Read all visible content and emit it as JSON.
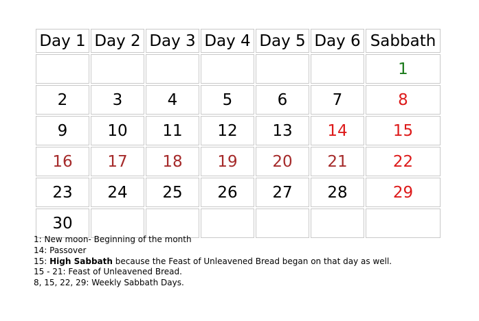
{
  "header": [
    "Day 1",
    "Day 2",
    "Day 3",
    "Day 4",
    "Day 5",
    "Day 6",
    "Sabbath"
  ],
  "colors": {
    "black": "#000000",
    "green": "#1a7a1a",
    "red": "#dd1a1a",
    "darkred": "#a52a2a"
  },
  "rows": [
    [
      {
        "t": "",
        "c": "black"
      },
      {
        "t": "",
        "c": "black"
      },
      {
        "t": "",
        "c": "black"
      },
      {
        "t": "",
        "c": "black"
      },
      {
        "t": "",
        "c": "black"
      },
      {
        "t": "",
        "c": "black"
      },
      {
        "t": "1",
        "c": "green"
      }
    ],
    [
      {
        "t": "2",
        "c": "black"
      },
      {
        "t": "3",
        "c": "black"
      },
      {
        "t": "4",
        "c": "black"
      },
      {
        "t": "5",
        "c": "black"
      },
      {
        "t": "6",
        "c": "black"
      },
      {
        "t": "7",
        "c": "black"
      },
      {
        "t": "8",
        "c": "red"
      }
    ],
    [
      {
        "t": "9",
        "c": "black"
      },
      {
        "t": "10",
        "c": "black"
      },
      {
        "t": "11",
        "c": "black"
      },
      {
        "t": "12",
        "c": "black"
      },
      {
        "t": "13",
        "c": "black"
      },
      {
        "t": "14",
        "c": "red"
      },
      {
        "t": "15",
        "c": "red"
      }
    ],
    [
      {
        "t": "16",
        "c": "darkred"
      },
      {
        "t": "17",
        "c": "darkred"
      },
      {
        "t": "18",
        "c": "darkred"
      },
      {
        "t": "19",
        "c": "darkred"
      },
      {
        "t": "20",
        "c": "darkred"
      },
      {
        "t": "21",
        "c": "darkred"
      },
      {
        "t": "22",
        "c": "red"
      }
    ],
    [
      {
        "t": "23",
        "c": "black"
      },
      {
        "t": "24",
        "c": "black"
      },
      {
        "t": "25",
        "c": "black"
      },
      {
        "t": "26",
        "c": "black"
      },
      {
        "t": "27",
        "c": "black"
      },
      {
        "t": "28",
        "c": "black"
      },
      {
        "t": "29",
        "c": "red"
      }
    ],
    [
      {
        "t": "30",
        "c": "black"
      },
      {
        "t": "",
        "c": "black"
      },
      {
        "t": "",
        "c": "black"
      },
      {
        "t": "",
        "c": "black"
      },
      {
        "t": "",
        "c": "black"
      },
      {
        "t": "",
        "c": "black"
      },
      {
        "t": "",
        "c": "black"
      }
    ]
  ],
  "notes": {
    "line1": "1: New moon- Beginning of the month",
    "line2": "14: Passover",
    "line3_prefix": "15: ",
    "line3_bold": "High Sabbath",
    "line3_rest": " because the Feast of Unleavened Bread began on that day as well.",
    "line4": "15 - 21: Feast of Unleavened Bread.",
    "line5": "8, 15, 22, 29: Weekly Sabbath Days."
  }
}
